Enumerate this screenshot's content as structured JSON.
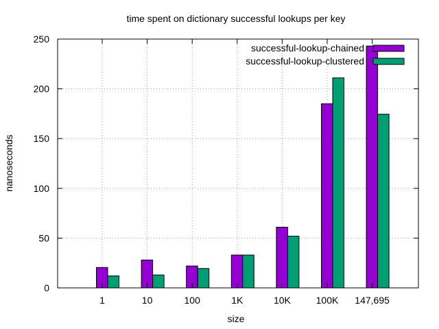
{
  "chart_data": {
    "type": "bar",
    "title": "time spent on dictionary successful lookups per key",
    "xlabel": "size",
    "ylabel": "nanoseconds",
    "ylim": [
      0,
      250
    ],
    "yticks": [
      0,
      50,
      100,
      150,
      200,
      250
    ],
    "grid": true,
    "legend_position": "top-right",
    "categories": [
      "1",
      "10",
      "100",
      "1K",
      "10K",
      "100K",
      "147,695"
    ],
    "series": [
      {
        "name": "successful-lookup-chained",
        "color": "#9400d3",
        "values": [
          20.5,
          28,
          22,
          33,
          61,
          185,
          243
        ]
      },
      {
        "name": "successful-lookup-clustered",
        "color": "#009e73",
        "values": [
          12,
          13,
          19.5,
          33,
          52,
          211,
          174.5
        ]
      }
    ]
  }
}
